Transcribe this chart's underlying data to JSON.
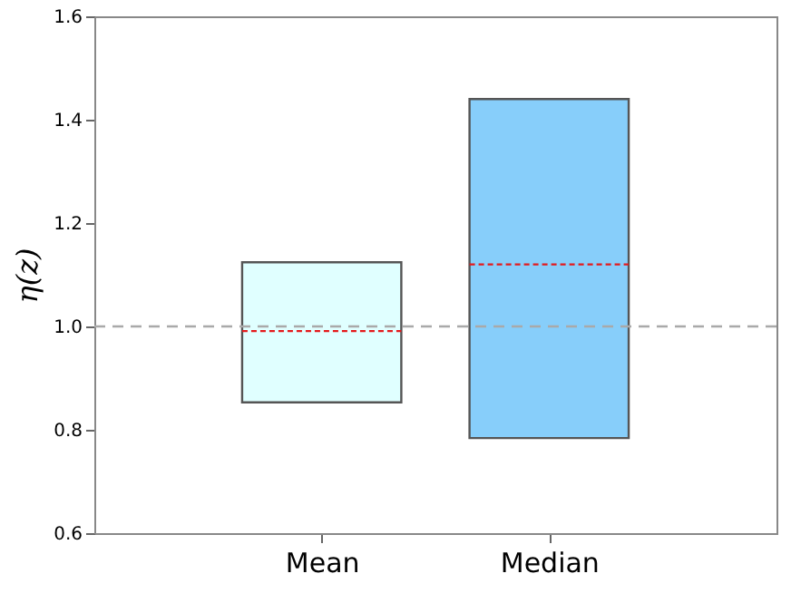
{
  "chart_data": {
    "type": "box",
    "ylabel": "η(z)",
    "categories": [
      "Mean",
      "Median"
    ],
    "boxes": [
      {
        "low": 0.853,
        "q1": 0.853,
        "median": 0.991,
        "q3": 1.124,
        "high": 1.124
      },
      {
        "low": 0.784,
        "q1": 0.784,
        "median": 1.12,
        "q3": 1.44,
        "high": 1.44
      }
    ],
    "colors": [
      "#e0ffff",
      "#87cefa"
    ],
    "ylim": [
      0.6,
      1.6
    ],
    "yticks": [
      0.6,
      0.8,
      {
        "value": 1,
        "label": "1.0"
      },
      1.2,
      1.4,
      1.6
    ],
    "ref_lines": [
      {
        "axis": "y",
        "value": 1,
        "color": "#a9a9a9",
        "line_style": "dashed"
      }
    ],
    "grid": false
  }
}
